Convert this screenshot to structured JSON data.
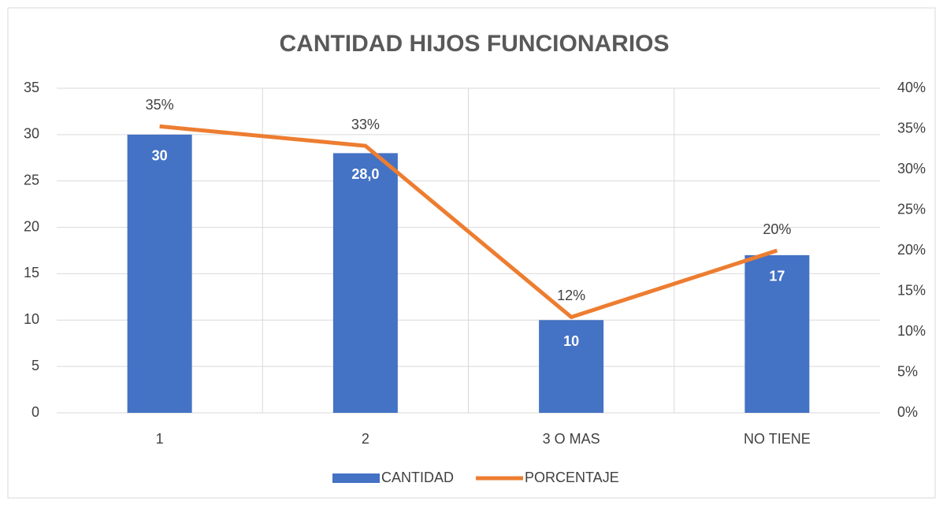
{
  "chart_data": {
    "type": "bar-line",
    "title": "CANTIDAD HIJOS FUNCIONARIOS",
    "categories": [
      "1",
      "2",
      "3 O MAS",
      "NO TIENE"
    ],
    "series": [
      {
        "name": "CANTIDAD",
        "type": "bar",
        "color": "#4472c4",
        "values": [
          30,
          28,
          10,
          17
        ],
        "value_labels": [
          "30",
          "28,0",
          "10",
          "17"
        ]
      },
      {
        "name": "PORCENTAJE",
        "type": "line",
        "axis": "y2",
        "color": "#ed7d31",
        "values": [
          35.3,
          32.9,
          11.8,
          20
        ],
        "value_labels": [
          "35%",
          "33%",
          "12%",
          "20%"
        ]
      }
    ],
    "ylim": [
      0,
      35
    ],
    "yticks": [
      0,
      5,
      10,
      15,
      20,
      25,
      30,
      35
    ],
    "y2lim": [
      0,
      40
    ],
    "y2ticks": [
      {
        "value": 0,
        "label": "0%"
      },
      {
        "value": 5,
        "label": "5%"
      },
      {
        "value": 10,
        "label": "10%"
      },
      {
        "value": 15,
        "label": "15%"
      },
      {
        "value": 20,
        "label": "20%"
      },
      {
        "value": 25,
        "label": "25%"
      },
      {
        "value": 30,
        "label": "30%"
      },
      {
        "value": 35,
        "label": "35%"
      },
      {
        "value": 40,
        "label": "40%"
      }
    ],
    "grid": true,
    "legend": "bottom"
  }
}
